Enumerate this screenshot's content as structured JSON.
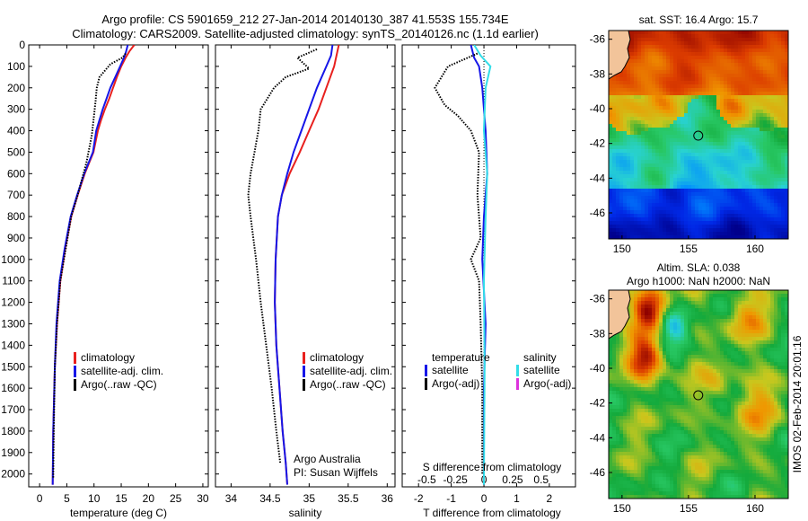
{
  "figure": {
    "title_line1": "Argo profile: CS 5901659_212 27-Jan-2014 20140130_387 41.553S 155.734E",
    "title_line2": "Climatology: CARS2009. Satellite-adjusted climatology: synTS_20140126.nc (1.1d earlier)",
    "side_stamp": "IMOS 02-Feb-2014 20:01:16",
    "credit_line1": "Argo Australia",
    "credit_line2": "PI: Susan Wijffels"
  },
  "colors": {
    "climatology": "#e8201e",
    "satellite": "#1616e8",
    "argo": "#000000",
    "satellite_s": "#33dde8",
    "argo_s": "#dd33dd"
  },
  "chart_data": [
    {
      "type": "line",
      "panel": "temperature",
      "xlabel": "temperature (deg C)",
      "xlim": [
        -2,
        31
      ],
      "ylim": [
        2060,
        0
      ],
      "xticks": [
        0,
        5,
        10,
        15,
        20,
        25,
        30
      ],
      "yticks": [
        0,
        100,
        200,
        300,
        400,
        500,
        600,
        700,
        800,
        900,
        1000,
        1100,
        1200,
        1300,
        1400,
        1500,
        1600,
        1700,
        1800,
        1900,
        2000
      ],
      "legend": [
        "climatology",
        "satellite-adj. clim.",
        "Argo(..raw -QC)"
      ],
      "series": [
        {
          "name": "climatology",
          "color_key": "climatology",
          "x": [
            17.4,
            16.5,
            15.8,
            15.0,
            14.2,
            13.5,
            12.8,
            12.0,
            11.3,
            10.7,
            9.9,
            8.3,
            7.0,
            5.8,
            4.7,
            3.8,
            3.2,
            2.8,
            2.5,
            2.4
          ],
          "y": [
            0,
            30,
            60,
            100,
            150,
            200,
            250,
            300,
            350,
            400,
            500,
            600,
            700,
            800,
            950,
            1100,
            1300,
            1500,
            1800,
            2050
          ]
        },
        {
          "name": "satellite-adj. clim.",
          "color_key": "satellite",
          "x": [
            16.2,
            15.9,
            15.5,
            14.8,
            13.9,
            13.0,
            12.3,
            11.6,
            11.0,
            10.4,
            9.8,
            8.2,
            6.9,
            5.7,
            4.6,
            3.7,
            3.1,
            2.8,
            2.5,
            2.4
          ],
          "y": [
            0,
            30,
            60,
            100,
            150,
            200,
            250,
            300,
            350,
            400,
            500,
            600,
            700,
            800,
            950,
            1100,
            1300,
            1500,
            1800,
            2050
          ]
        },
        {
          "name": "Argo(..raw -QC)",
          "color_key": "argo",
          "dotted": true,
          "x": [
            15.8,
            15.2,
            13.0,
            11.0,
            10.5,
            10.3,
            10.0,
            9.6,
            8.6,
            7.0,
            5.8,
            4.8,
            3.8,
            3.2,
            2.8,
            2.6,
            2.5
          ],
          "y": [
            40,
            60,
            90,
            150,
            200,
            260,
            330,
            420,
            550,
            700,
            800,
            950,
            1100,
            1300,
            1500,
            1800,
            2020
          ]
        }
      ]
    },
    {
      "type": "line",
      "panel": "salinity",
      "xlabel": "salinity",
      "xlim": [
        33.8,
        36.1
      ],
      "ylim": [
        2060,
        0
      ],
      "xticks": [
        34,
        34.5,
        35,
        35.5,
        36
      ],
      "legend": [
        "climatology",
        "satellite-adj. clim.",
        "Argo(..raw -QC)"
      ],
      "series": [
        {
          "name": "climatology",
          "color_key": "climatology",
          "x": [
            35.38,
            35.35,
            35.32,
            35.22,
            35.12,
            35.0,
            34.88,
            34.75,
            34.65,
            34.6,
            34.57,
            34.56,
            34.58,
            34.62,
            34.66,
            34.7,
            34.72
          ],
          "y": [
            0,
            50,
            100,
            200,
            300,
            400,
            500,
            600,
            700,
            800,
            1000,
            1200,
            1400,
            1600,
            1800,
            1950,
            2050
          ]
        },
        {
          "name": "satellite-adj. clim.",
          "color_key": "satellite",
          "x": [
            35.3,
            35.28,
            35.22,
            35.1,
            35.0,
            34.9,
            34.8,
            34.72,
            34.65,
            34.6,
            34.57,
            34.56,
            34.58,
            34.62,
            34.66,
            34.7,
            34.72
          ],
          "y": [
            0,
            50,
            100,
            200,
            300,
            400,
            500,
            600,
            700,
            800,
            1000,
            1200,
            1400,
            1600,
            1800,
            1950,
            2050
          ]
        },
        {
          "name": "Argo(..raw -QC)",
          "color_key": "argo",
          "dotted": true,
          "x": [
            35.1,
            34.85,
            35.0,
            34.7,
            34.55,
            34.38,
            34.35,
            34.3,
            34.25,
            34.22,
            34.25,
            34.32,
            34.38,
            34.45,
            34.52,
            34.58,
            34.63
          ],
          "y": [
            20,
            60,
            110,
            150,
            200,
            300,
            400,
            500,
            600,
            700,
            800,
            1000,
            1200,
            1400,
            1600,
            1800,
            1950
          ]
        }
      ]
    },
    {
      "type": "line",
      "panel": "difference",
      "xlabel": "T difference from climatology",
      "xlabel_top": "S difference from climatology",
      "xlim": [
        -2.5,
        2.8
      ],
      "ylim": [
        2060,
        0
      ],
      "xticks": [
        -2,
        -1,
        0,
        1,
        2
      ],
      "xticks_s": [
        {
          "label": "-0.5",
          "at": -1.75
        },
        {
          "label": "-0.25",
          "at": -0.875
        },
        {
          "label": "0",
          "at": 0
        },
        {
          "label": "0.25",
          "at": 0.875
        },
        {
          "label": "0.5",
          "at": 1.75
        }
      ],
      "legend_t_title": "temperature",
      "legend_s_title": "salinity",
      "legend_t": [
        "satellite",
        "Argo(-adj)"
      ],
      "legend_s": [
        "satellite",
        "Argo(-adj)"
      ],
      "series": [
        {
          "name": "satellite",
          "color_key": "satellite",
          "x": [
            -0.4,
            -0.3,
            -0.15,
            -0.05,
            0.05,
            0.1,
            0.0,
            -0.05,
            0.05,
            0.0,
            0.0
          ],
          "y": [
            0,
            60,
            100,
            200,
            400,
            600,
            800,
            1000,
            1300,
            1600,
            2050
          ]
        },
        {
          "name": "satellite",
          "color_key": "satellite_s",
          "x": [
            -0.3,
            -0.1,
            0.2,
            0.05,
            0.0,
            0.1,
            0.05,
            0.0,
            0.02,
            0.0
          ],
          "y": [
            0,
            50,
            100,
            200,
            400,
            600,
            800,
            1100,
            1500,
            2050
          ]
        },
        {
          "name": "Argo(-adj)",
          "color_key": "argo",
          "dotted": true,
          "x": [
            -0.2,
            -1.1,
            -1.5,
            -1.2,
            -0.8,
            -0.4,
            -0.15,
            -0.2,
            -0.1,
            -0.4,
            -0.15,
            -0.1,
            -0.05,
            -0.05
          ],
          "y": [
            40,
            100,
            200,
            280,
            330,
            400,
            500,
            700,
            900,
            1000,
            1100,
            1300,
            1600,
            2000
          ]
        }
      ]
    },
    {
      "type": "heatmap",
      "panel": "sst_map",
      "title": "sat. SST: 16.4 Argo: 15.7",
      "xlim": [
        149,
        162.5
      ],
      "ylim": [
        -47.5,
        -35.5
      ],
      "xticks": [
        150,
        155,
        160
      ],
      "yticks": [
        -36,
        -38,
        -40,
        -42,
        -44,
        -46
      ],
      "marker": {
        "lon": 155.734,
        "lat": -41.553
      }
    },
    {
      "type": "heatmap",
      "panel": "sla_map",
      "title_line1": "Altim. SLA: 0.038",
      "title_line2": "Argo h1000: NaN h2000: NaN",
      "xlim": [
        149,
        162.5
      ],
      "ylim": [
        -47.5,
        -35.5
      ],
      "xticks": [
        150,
        155,
        160
      ],
      "yticks": [
        -36,
        -38,
        -40,
        -42,
        -44,
        -46
      ],
      "marker": {
        "lon": 155.734,
        "lat": -41.553
      }
    }
  ]
}
